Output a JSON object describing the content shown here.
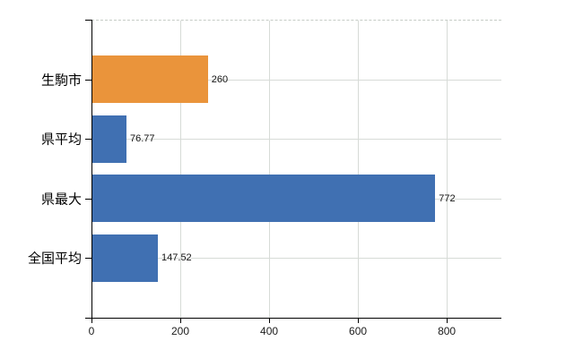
{
  "chart_data": {
    "type": "bar",
    "orientation": "horizontal",
    "title": "",
    "categories": [
      "生駒市",
      "県平均",
      "県最大",
      "全国平均"
    ],
    "values": [
      260,
      76.77,
      772,
      147.52
    ],
    "value_labels": [
      "260",
      "76.77",
      "772",
      "147.52"
    ],
    "bar_colors": [
      "#ea943b",
      "#4070b2",
      "#4070b2",
      "#4070b2"
    ],
    "x_ticks": [
      0,
      200,
      400,
      600,
      800
    ],
    "x_tick_labels": [
      "0",
      "200",
      "400",
      "600",
      "800"
    ],
    "xlim": [
      0,
      923
    ],
    "grid": true,
    "legend": false,
    "styles": {
      "accent_orange": "#ea943b",
      "accent_blue": "#4070b2",
      "gridline_color": "#d7dbd7",
      "axis_color": "#000000",
      "plot_top_border_color": "#c6ccc6",
      "background": "#ffffff"
    }
  }
}
